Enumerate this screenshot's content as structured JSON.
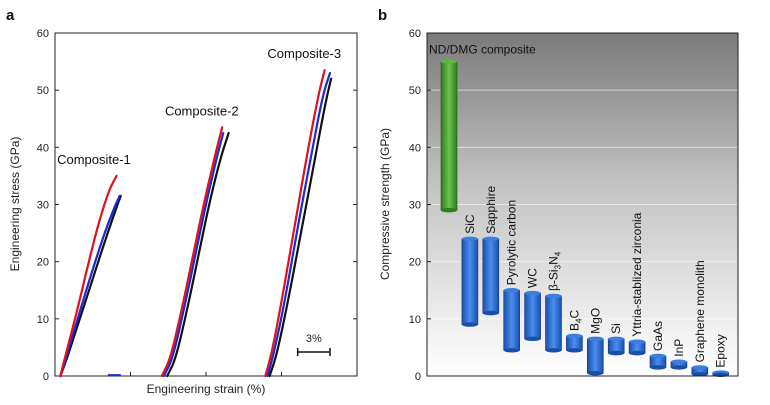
{
  "panels": {
    "a": "a",
    "b": "b"
  },
  "chart_data": [
    {
      "type": "line",
      "panel": "a",
      "xlabel": "Engineering strain (%)",
      "ylabel": "Engineering stress (GPa)",
      "ylim": [
        0,
        60
      ],
      "yticks": [
        "0",
        "10",
        "20",
        "30",
        "40",
        "50",
        "60"
      ],
      "scale_bar_label": "3%",
      "scale_bar_strain": 3,
      "colors": {
        "red": "#e0101e",
        "blue": "#1a2ad6",
        "black": "#111111"
      },
      "curves": [
        {
          "label": "Composite-1",
          "series": [
            {
              "color": "red",
              "points": [
                [
                  0,
                  0
                ],
                [
                  0.4,
                  3
                ],
                [
                  1.5,
                  11
                ],
                [
                  2.5,
                  19
                ],
                [
                  3.5,
                  26.5
                ],
                [
                  4.5,
                  32.5
                ],
                [
                  5.2,
                  35
                ]
              ]
            },
            {
              "color": "blue",
              "points": [
                [
                  0,
                  0
                ],
                [
                  0.5,
                  3
                ],
                [
                  1.6,
                  10
                ],
                [
                  2.8,
                  17.5
                ],
                [
                  4.0,
                  24.5
                ],
                [
                  5.0,
                  29.5
                ],
                [
                  5.5,
                  31.5
                ]
              ]
            },
            {
              "color": "black",
              "points": [
                [
                  0,
                  0
                ],
                [
                  0.6,
                  3
                ],
                [
                  1.8,
                  10
                ],
                [
                  3.0,
                  17
                ],
                [
                  4.2,
                  24
                ],
                [
                  5.2,
                  29.5
                ],
                [
                  5.6,
                  31.5
                ]
              ]
            }
          ]
        },
        {
          "label": "Composite-2",
          "series": [
            {
              "color": "red",
              "points": [
                [
                  9.4,
                  0
                ],
                [
                  10.2,
                  3
                ],
                [
                  11.3,
                  12
                ],
                [
                  12.4,
                  22
                ],
                [
                  13.4,
                  31
                ],
                [
                  14.4,
                  39
                ],
                [
                  15.0,
                  43.5
                ]
              ]
            },
            {
              "color": "blue",
              "points": [
                [
                  9.6,
                  0
                ],
                [
                  10.4,
                  3
                ],
                [
                  11.5,
                  12
                ],
                [
                  12.6,
                  22
                ],
                [
                  13.6,
                  31
                ],
                [
                  14.6,
                  39
                ],
                [
                  15.1,
                  42.5
                ]
              ]
            },
            {
              "color": "black",
              "points": [
                [
                  9.9,
                  0
                ],
                [
                  10.7,
                  3
                ],
                [
                  11.8,
                  12
                ],
                [
                  12.9,
                  22
                ],
                [
                  13.9,
                  31
                ],
                [
                  14.9,
                  38.5
                ],
                [
                  15.6,
                  42.5
                ]
              ]
            }
          ]
        },
        {
          "label": "Composite-3",
          "series": [
            {
              "color": "red",
              "points": [
                [
                  19.0,
                  0
                ],
                [
                  19.6,
                  4
                ],
                [
                  20.6,
                  14
                ],
                [
                  21.7,
                  26
                ],
                [
                  22.8,
                  38
                ],
                [
                  23.9,
                  49
                ],
                [
                  24.5,
                  53.5
                ]
              ]
            },
            {
              "color": "blue",
              "points": [
                [
                  19.2,
                  0
                ],
                [
                  19.8,
                  4
                ],
                [
                  20.9,
                  14
                ],
                [
                  22.0,
                  26
                ],
                [
                  23.2,
                  38
                ],
                [
                  24.3,
                  49
                ],
                [
                  25.0,
                  53
                ]
              ]
            },
            {
              "color": "black",
              "points": [
                [
                  19.4,
                  0
                ],
                [
                  20.1,
                  4
                ],
                [
                  21.2,
                  14
                ],
                [
                  22.4,
                  26
                ],
                [
                  23.6,
                  38
                ],
                [
                  24.6,
                  48
                ],
                [
                  25.1,
                  52
                ]
              ]
            }
          ]
        }
      ]
    },
    {
      "type": "bar",
      "panel": "b",
      "ylabel": "Compressive strength (GPa)",
      "ylim": [
        0,
        60
      ],
      "yticks": [
        "0",
        "10",
        "20",
        "30",
        "40",
        "50",
        "60"
      ],
      "bars": [
        {
          "label": "ND/DMG composite",
          "min": 29,
          "max": 55,
          "color": "#3f9c2a"
        },
        {
          "label": "SiC",
          "min": 9,
          "max": 24,
          "color": "#1f5fc4"
        },
        {
          "label": "Sapphire",
          "min": 11,
          "max": 24,
          "color": "#1f5fc4"
        },
        {
          "label": "Pyrolytic carbon",
          "min": 4.5,
          "max": 15,
          "color": "#1f5fc4"
        },
        {
          "label": "WC",
          "min": 6.5,
          "max": 14.5,
          "color": "#1f5fc4"
        },
        {
          "label": "β-Si3N4",
          "label_main": "β-Si",
          "label_sub1": "3",
          "label_mid": "N",
          "label_sub2": "4",
          "min": 4.5,
          "max": 14,
          "color": "#1f5fc4"
        },
        {
          "label": "B4C",
          "label_main": "B",
          "label_sub1": "4",
          "label_mid": "C",
          "min": 4.5,
          "max": 7,
          "color": "#1f5fc4"
        },
        {
          "label": "MgO",
          "min": 0.5,
          "max": 6.5,
          "color": "#1f5fc4"
        },
        {
          "label": "Si",
          "min": 4,
          "max": 6.5,
          "color": "#1f5fc4"
        },
        {
          "label": "Yttria-stablized zirconia",
          "min": 4,
          "max": 6,
          "color": "#1f5fc4"
        },
        {
          "label": "GaAs",
          "min": 1.5,
          "max": 3.5,
          "color": "#1f5fc4"
        },
        {
          "label": "InP",
          "min": 1.5,
          "max": 2.5,
          "color": "#1f5fc4"
        },
        {
          "label": "Graphene monolith",
          "min": 0.3,
          "max": 1.5,
          "color": "#1f5fc4"
        },
        {
          "label": "Epoxy",
          "min": 0.2,
          "max": 0.6,
          "color": "#1f5fc4"
        }
      ]
    }
  ]
}
